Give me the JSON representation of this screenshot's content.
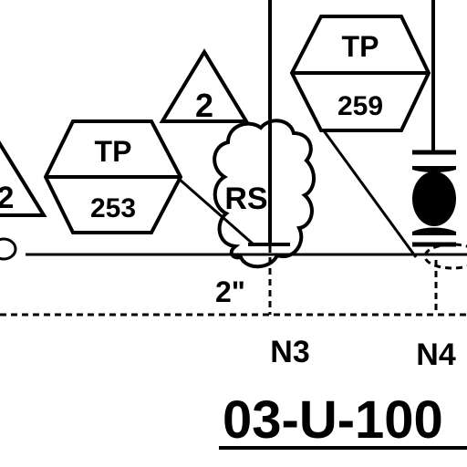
{
  "drawing": {
    "colors": {
      "ink": "#000000",
      "paper": "#ffffff"
    },
    "tags": [
      {
        "id": "tp-253",
        "prefix": "TP",
        "number": "253"
      },
      {
        "id": "tp-259",
        "prefix": "TP",
        "number": "259"
      }
    ],
    "revision_triangles": [
      {
        "id": "rev-left",
        "label": "2"
      },
      {
        "id": "rev-center",
        "label": "2"
      }
    ],
    "cloud_label": "RS",
    "pipe_size": "2\"",
    "nodes": [
      "N3",
      "N4"
    ],
    "line_number": "03-U-100",
    "icons": [
      "revision-triangle",
      "instrument-tag-hexagon",
      "revision-cloud",
      "valve-symbol"
    ]
  }
}
